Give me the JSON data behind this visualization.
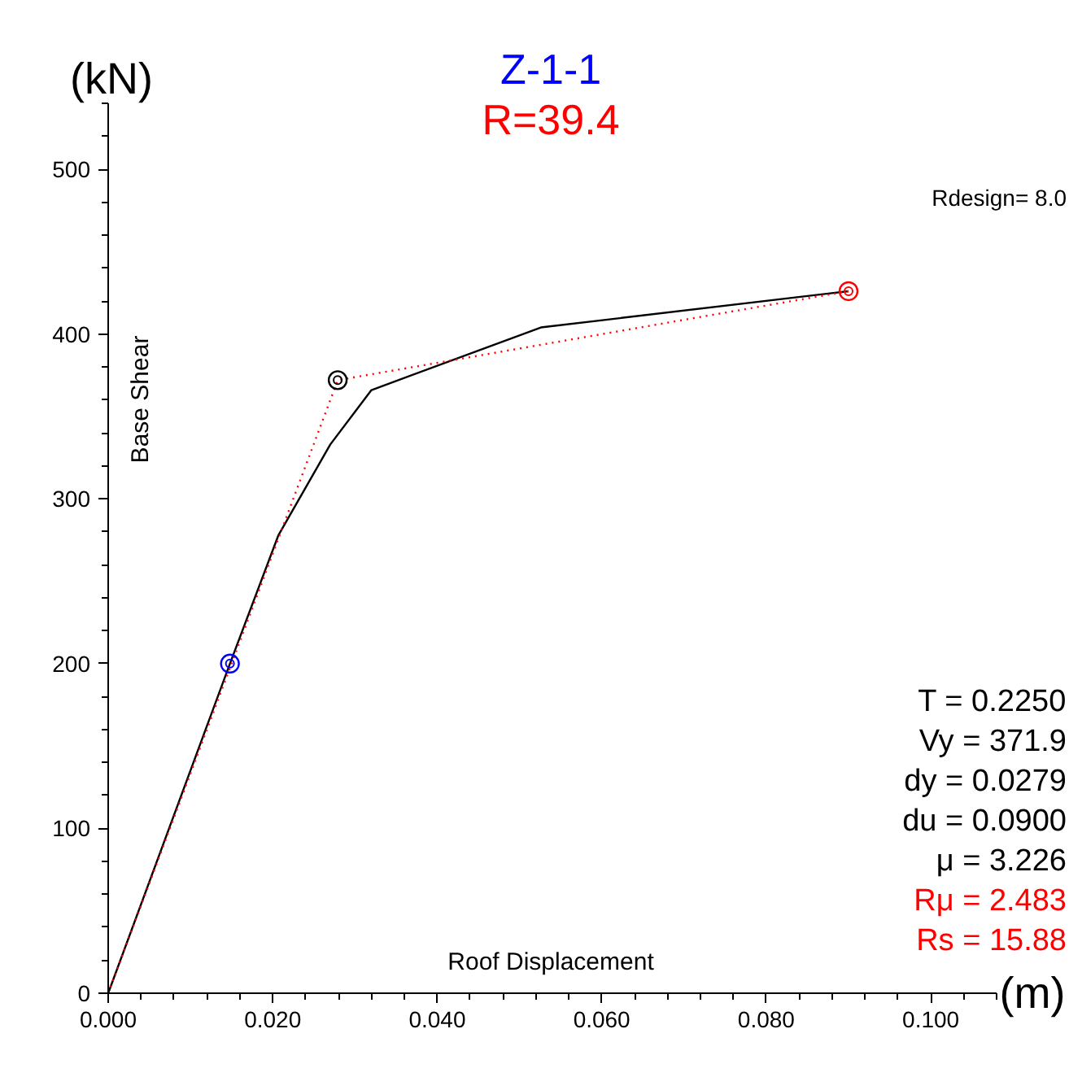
{
  "chart_data": {
    "type": "line",
    "title": "Z-1-1",
    "subtitle": "R=39.4",
    "xlabel": "Roof Displacement",
    "ylabel": "Base Shear",
    "annotations": [
      "(kN)",
      "(m)",
      "Rdesign= 8.0",
      "T = 0.2250",
      "Vy = 371.9",
      "dy = 0.0279",
      "du = 0.0900",
      "μ = 3.226",
      "Rμ = 2.483",
      "Rs = 15.88"
    ],
    "xlim": [
      0,
      0.108
    ],
    "ylim": [
      0,
      540
    ],
    "xticks": [
      {
        "value": 0,
        "label": "0.000"
      },
      {
        "value": 0.02,
        "label": "0.020"
      },
      {
        "value": 0.04,
        "label": "0.040"
      },
      {
        "value": 0.06,
        "label": "0.060"
      },
      {
        "value": 0.08,
        "label": "0.080"
      },
      {
        "value": 0.1,
        "label": "0.100"
      }
    ],
    "yticks": [
      0,
      100,
      200,
      300,
      400,
      500
    ],
    "grid": false,
    "series": [
      {
        "color": "#000000",
        "line_style": "solid",
        "x": [
          0,
          0.0148,
          0.0207,
          0.027,
          0.032,
          0.0526,
          0.09
        ],
        "values": [
          0,
          200,
          278,
          333,
          366,
          404,
          426
        ]
      },
      {
        "color": "#ff0000",
        "line_style": "dotted",
        "x": [
          0,
          0.0279,
          0.09
        ],
        "values": [
          0,
          372,
          426
        ]
      },
      {
        "type": "scatter",
        "marker": "circle",
        "color": "#0000ff",
        "x": [
          0.0148
        ],
        "values": [
          200
        ]
      },
      {
        "type": "scatter",
        "marker": "circle",
        "color": "#000000",
        "x": [
          0.0279
        ],
        "values": [
          372
        ]
      },
      {
        "type": "scatter",
        "marker": "circle",
        "color": "#ff0000",
        "x": [
          0.09
        ],
        "values": [
          426
        ]
      }
    ]
  }
}
